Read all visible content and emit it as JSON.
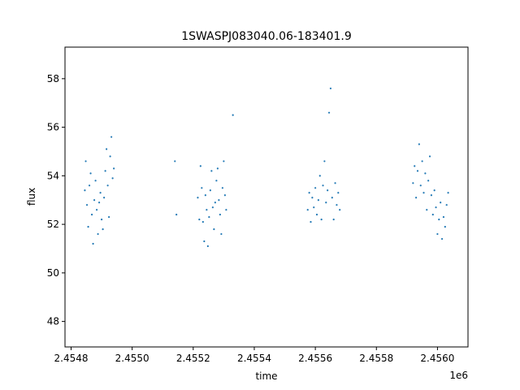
{
  "chart_data": {
    "type": "scatter",
    "title": "1SWASPJ083040.06-183401.9",
    "xlabel": "time",
    "ylabel": "flux",
    "x_offset_label": "1e6",
    "x_scale": 1000000,
    "xlim": [
      2454780,
      2456100
    ],
    "ylim": [
      46.95,
      59.3
    ],
    "x_ticks": [
      2454800,
      2455000,
      2455200,
      2455400,
      2455600,
      2455800,
      2456000
    ],
    "x_tick_labels": [
      "2.4548",
      "2.4550",
      "2.4552",
      "2.4554",
      "2.4556",
      "2.4558",
      "2.4560"
    ],
    "y_ticks": [
      48,
      50,
      52,
      54,
      56,
      58
    ],
    "y_tick_labels": [
      "48",
      "50",
      "52",
      "54",
      "56",
      "58"
    ],
    "grid": false,
    "marker_color": "#1f77b4",
    "series": [
      {
        "x": [
          2454845,
          2454848,
          2454852,
          2454856,
          2454860,
          2454864,
          2454868,
          2454872,
          2454876,
          2454880,
          2454884,
          2454888,
          2454892,
          2454896,
          2454900,
          2454904,
          2454908,
          2454912,
          2454916,
          2454920,
          2454924,
          2454928,
          2454932,
          2454936,
          2454940,
          2455140,
          2455145,
          2455215,
          2455220,
          2455224,
          2455228,
          2455232,
          2455236,
          2455240,
          2455244,
          2455248,
          2455252,
          2455256,
          2455260,
          2455264,
          2455268,
          2455272,
          2455276,
          2455280,
          2455284,
          2455288,
          2455292,
          2455296,
          2455300,
          2455304,
          2455308,
          2455330,
          2455575,
          2455580,
          2455585,
          2455590,
          2455595,
          2455600,
          2455605,
          2455610,
          2455615,
          2455620,
          2455625,
          2455630,
          2455635,
          2455640,
          2455645,
          2455650,
          2455655,
          2455660,
          2455665,
          2455670,
          2455675,
          2455680,
          2455920,
          2455925,
          2455930,
          2455935,
          2455940,
          2455945,
          2455950,
          2455955,
          2455960,
          2455965,
          2455970,
          2455975,
          2455980,
          2455985,
          2455990,
          2455995,
          2456000,
          2456005,
          2456010,
          2456015,
          2456020,
          2456025,
          2456030,
          2456035
        ],
        "y": [
          53.4,
          54.6,
          52.8,
          51.9,
          53.6,
          54.1,
          52.4,
          51.2,
          53.0,
          53.8,
          52.6,
          51.6,
          52.9,
          53.3,
          52.2,
          51.8,
          53.1,
          54.2,
          55.1,
          53.6,
          52.3,
          54.8,
          55.6,
          53.9,
          54.3,
          54.6,
          52.4,
          53.1,
          52.2,
          54.4,
          53.5,
          52.1,
          51.3,
          53.2,
          52.6,
          51.1,
          52.3,
          53.4,
          54.2,
          52.7,
          51.8,
          52.9,
          53.8,
          54.3,
          53.0,
          52.4,
          51.6,
          53.5,
          54.6,
          53.2,
          52.6,
          56.5,
          52.6,
          53.3,
          52.1,
          53.1,
          52.7,
          53.5,
          52.4,
          53.0,
          54.0,
          52.2,
          53.6,
          54.6,
          52.9,
          53.4,
          56.6,
          57.6,
          53.1,
          52.2,
          53.7,
          52.8,
          53.3,
          52.6,
          53.7,
          54.4,
          53.1,
          54.2,
          55.3,
          53.6,
          54.6,
          53.3,
          54.1,
          52.6,
          53.8,
          54.8,
          53.2,
          52.4,
          53.4,
          52.7,
          51.6,
          52.2,
          52.9,
          51.4,
          52.3,
          51.9,
          52.8,
          53.3
        ]
      }
    ]
  }
}
